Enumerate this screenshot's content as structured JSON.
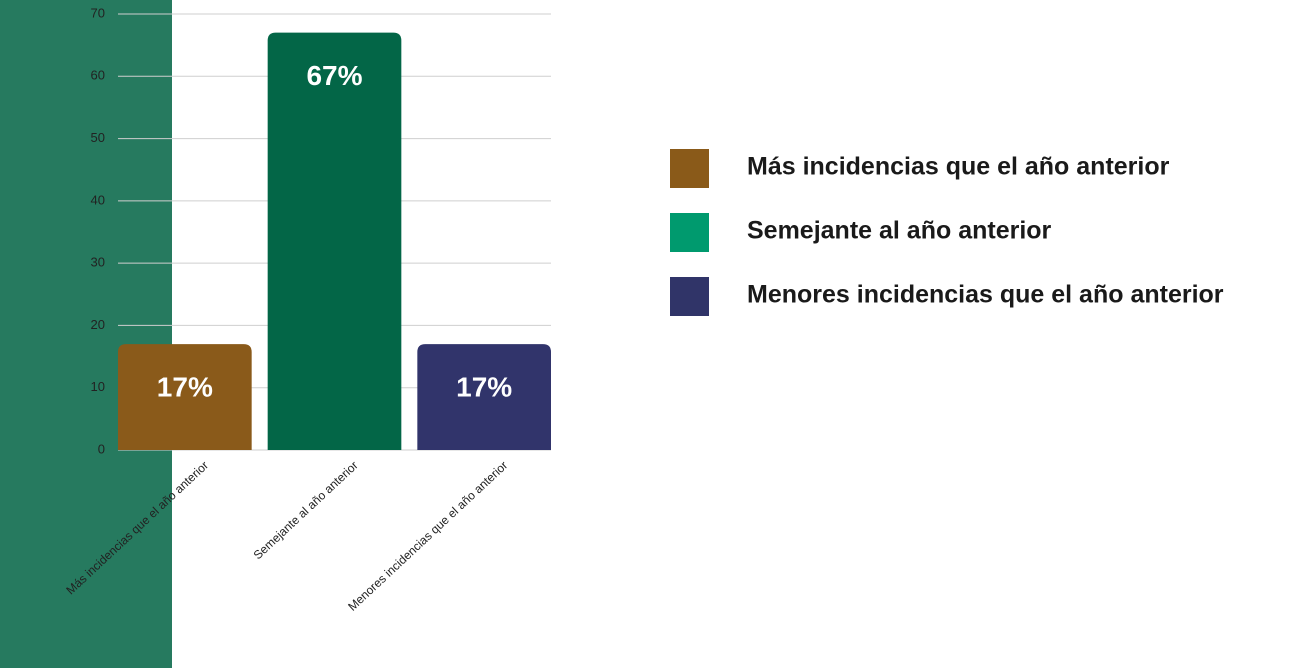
{
  "chart_data": {
    "type": "bar",
    "categories": [
      "Más incidencias que el año anterior",
      "Semejante al año anterior",
      "Menores incidencias que el año anterior"
    ],
    "values": [
      17,
      67,
      17
    ],
    "value_labels": [
      "17%",
      "67%",
      "17%"
    ],
    "colors": [
      "#8a5a1a",
      "#036647",
      "#31346b"
    ],
    "legend": {
      "labels": [
        "Más incidencias que el año anterior",
        "Semejante al año anterior",
        "Menores incidencias que el año anterior"
      ],
      "colors": [
        "#8a5a19",
        "#009a6e",
        "#303468"
      ]
    },
    "ylim": [
      0,
      70
    ],
    "yticks": [
      0,
      10,
      20,
      30,
      40,
      50,
      60,
      70
    ],
    "grid": true
  }
}
